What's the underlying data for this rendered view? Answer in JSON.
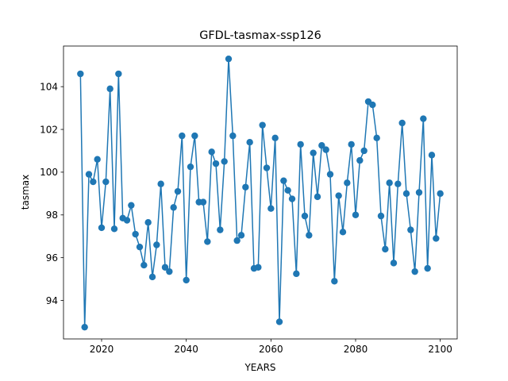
{
  "chart_data": {
    "type": "line",
    "title": "GFDL-tasmax-ssp126",
    "xlabel": "YEARS",
    "ylabel": "tasmax",
    "xlim": [
      2011,
      2104
    ],
    "ylim": [
      92.2,
      105.9
    ],
    "x_ticks": [
      2020,
      2040,
      2060,
      2080,
      2100
    ],
    "y_ticks": [
      94,
      96,
      98,
      100,
      102,
      104
    ],
    "grid": false,
    "marker": "circle",
    "colors": {
      "series": "#1f77b4"
    },
    "series": [
      {
        "x": [
          2015,
          2016,
          2017,
          2018,
          2019,
          2020,
          2021,
          2022,
          2023,
          2024,
          2025,
          2026,
          2027,
          2028,
          2029,
          2030,
          2031,
          2032,
          2033,
          2034,
          2035,
          2036,
          2037,
          2038,
          2039,
          2040,
          2041,
          2042,
          2043,
          2044,
          2045,
          2046,
          2047,
          2048,
          2049,
          2050,
          2051,
          2052,
          2053,
          2054,
          2055,
          2056,
          2057,
          2058,
          2059,
          2060,
          2061,
          2062,
          2063,
          2064,
          2065,
          2066,
          2067,
          2068,
          2069,
          2070,
          2071,
          2072,
          2073,
          2074,
          2075,
          2076,
          2077,
          2078,
          2079,
          2080,
          2081,
          2082,
          2083,
          2084,
          2085,
          2086,
          2087,
          2088,
          2089,
          2090,
          2091,
          2092,
          2093,
          2094,
          2095,
          2096,
          2097,
          2098,
          2099,
          2100
        ],
        "values": [
          104.6,
          92.75,
          99.9,
          99.55,
          100.6,
          97.4,
          99.55,
          103.9,
          97.35,
          104.6,
          97.85,
          97.75,
          98.45,
          97.1,
          96.5,
          95.65,
          97.65,
          95.1,
          96.6,
          99.45,
          95.55,
          95.35,
          98.35,
          99.1,
          101.7,
          94.95,
          100.25,
          101.7,
          98.6,
          98.6,
          96.75,
          100.95,
          100.4,
          97.3,
          100.5,
          105.3,
          101.7,
          96.8,
          97.05,
          99.3,
          101.4,
          95.5,
          95.55,
          102.2,
          100.2,
          98.3,
          101.6,
          93.0,
          99.6,
          99.15,
          98.75,
          95.25,
          101.3,
          97.95,
          97.05,
          100.9,
          98.85,
          101.25,
          101.05,
          99.9,
          94.9,
          98.9,
          97.2,
          99.5,
          101.3,
          98.0,
          100.55,
          101.0,
          103.3,
          103.15,
          101.6,
          97.95,
          96.4,
          99.5,
          95.75,
          99.45,
          102.3,
          99.0,
          97.3,
          95.35,
          99.05,
          102.5,
          95.5,
          100.8,
          96.9,
          99.0
        ]
      }
    ]
  }
}
